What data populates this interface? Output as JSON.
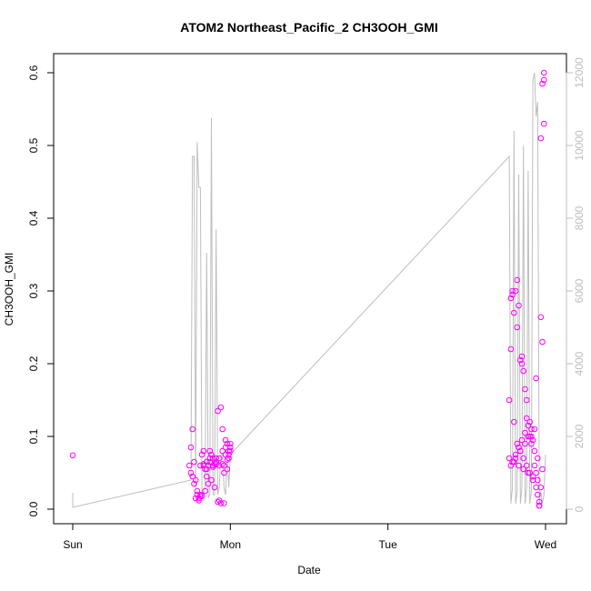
{
  "chart_data": {
    "type": "scatter",
    "title": "ATOM2 Northeast_Pacific_2 CH3OOH_GMI",
    "xlabel": "Date",
    "ylabel": "CH3OOH_GMI",
    "x_unit": "days since Sunday 00:00",
    "xlim": [
      0,
      3
    ],
    "x_ticks": [
      0,
      1,
      2,
      3
    ],
    "x_tick_labels": [
      "Sun",
      "Mon",
      "Tue",
      "Wed"
    ],
    "ylim": [
      0,
      0.6
    ],
    "y_ticks": [
      "0.0",
      "0.1",
      "0.2",
      "0.3",
      "0.4",
      "0.5",
      "0.6"
    ],
    "y2lim": [
      0,
      12000
    ],
    "y2_ticks": [
      "0",
      "2000",
      "4000",
      "6000",
      "8000",
      "10000",
      "12000"
    ],
    "grid": false,
    "legend": "none",
    "colors": {
      "points": "#ff00ff",
      "line": "#bebebe",
      "text": "#000000"
    },
    "series": [
      {
        "kind": "points",
        "axis": "left",
        "x": [
          0.0,
          0.74,
          0.75,
          0.76,
          0.77,
          0.78,
          0.79,
          0.8,
          0.81,
          0.82,
          0.83,
          0.84,
          0.85,
          0.86,
          0.87,
          0.88,
          0.89,
          0.9,
          0.91,
          0.92,
          0.93,
          0.94,
          0.95,
          0.96,
          0.97,
          0.98,
          0.99,
          1.0,
          0.76,
          0.78,
          0.8,
          0.82,
          0.84,
          0.86,
          0.88,
          0.9,
          0.92,
          0.94,
          0.96,
          0.98,
          1.0,
          0.81,
          0.83,
          0.85,
          0.87,
          0.89,
          0.91,
          0.93,
          0.95,
          0.97,
          0.99,
          0.75,
          0.77,
          0.79,
          0.81,
          0.83,
          0.85,
          0.87,
          0.89,
          0.91,
          0.93,
          0.95,
          0.96,
          0.97,
          0.98,
          0.99,
          1.0,
          2.77,
          2.78,
          2.79,
          2.8,
          2.81,
          2.82,
          2.83,
          2.84,
          2.85,
          2.86,
          2.87,
          2.88,
          2.89,
          2.9,
          2.91,
          2.92,
          2.93,
          2.94,
          2.95,
          2.96,
          2.97,
          2.98,
          2.99,
          2.78,
          2.8,
          2.82,
          2.84,
          2.86,
          2.88,
          2.9,
          2.92,
          2.94,
          2.96,
          2.98,
          2.79,
          2.81,
          2.83,
          2.85,
          2.87,
          2.89,
          2.91,
          2.93,
          2.95,
          2.97,
          2.99,
          2.77,
          2.8,
          2.83,
          2.86,
          2.89,
          2.92,
          2.95,
          2.98,
          2.78,
          2.81,
          2.84,
          2.87,
          2.9,
          2.93,
          2.96,
          2.99,
          2.79,
          2.82,
          2.85,
          2.88,
          2.91,
          2.94,
          2.97
        ],
        "y": [
          0.074,
          0.06,
          0.05,
          0.11,
          0.065,
          0.04,
          0.02,
          0.015,
          0.06,
          0.075,
          0.08,
          0.055,
          0.065,
          0.06,
          0.07,
          0.075,
          0.06,
          0.062,
          0.065,
          0.135,
          0.07,
          0.14,
          0.08,
          0.06,
          0.075,
          0.068,
          0.07,
          0.085,
          0.045,
          0.015,
          0.012,
          0.018,
          0.025,
          0.035,
          0.04,
          0.03,
          0.01,
          0.008,
          0.05,
          0.055,
          0.09,
          0.02,
          0.062,
          0.045,
          0.08,
          0.058,
          0.07,
          0.012,
          0.11,
          0.095,
          0.08,
          0.085,
          0.035,
          0.025,
          0.018,
          0.06,
          0.055,
          0.065,
          0.07,
          0.062,
          0.06,
          0.062,
          0.008,
          0.085,
          0.09,
          0.075,
          0.08,
          0.15,
          0.29,
          0.295,
          0.27,
          0.3,
          0.315,
          0.28,
          0.205,
          0.21,
          0.19,
          0.165,
          0.125,
          0.115,
          0.12,
          0.1,
          0.095,
          0.06,
          0.05,
          0.02,
          0.01,
          0.03,
          0.23,
          0.6,
          0.22,
          0.12,
          0.09,
          0.08,
          0.07,
          0.06,
          0.05,
          0.04,
          0.03,
          0.005,
          0.055,
          0.065,
          0.075,
          0.085,
          0.095,
          0.105,
          0.1,
          0.09,
          0.08,
          0.07,
          0.51,
          0.59,
          0.07,
          0.065,
          0.06,
          0.055,
          0.05,
          0.045,
          0.04,
          0.585,
          0.06,
          0.07,
          0.08,
          0.09,
          0.1,
          0.11,
          0.005,
          0.53,
          0.3,
          0.25,
          0.2,
          0.15,
          0.11,
          0.18,
          0.264
        ]
      },
      {
        "kind": "line",
        "axis": "right",
        "x": [
          0.0,
          0.0,
          0.75,
          0.76,
          0.77,
          0.78,
          0.79,
          0.8,
          0.81,
          0.82,
          0.83,
          0.84,
          0.85,
          0.86,
          0.87,
          0.88,
          0.89,
          0.9,
          0.91,
          0.92,
          0.93,
          0.94,
          0.95,
          0.96,
          0.97,
          0.98,
          0.99,
          1.0,
          2.77,
          2.78,
          2.79,
          2.8,
          2.81,
          2.82,
          2.83,
          2.84,
          2.85,
          2.86,
          2.87,
          2.88,
          2.89,
          2.9,
          2.91,
          2.92,
          2.93,
          2.94,
          2.95,
          2.96,
          2.97,
          2.98,
          2.99,
          3.0
        ],
        "y": [
          450,
          50,
          800,
          9700,
          9700,
          600,
          10100,
          8850,
          8850,
          400,
          400,
          600,
          7050,
          300,
          400,
          10750,
          400,
          400,
          7700,
          400,
          600,
          1500,
          1500,
          600,
          400,
          1500,
          600,
          1500,
          9700,
          150,
          600,
          10400,
          150,
          500,
          9200,
          150,
          600,
          10000,
          150,
          600,
          9300,
          150,
          500,
          11800,
          12000,
          10800,
          11200,
          150,
          500,
          150,
          400,
          1500
        ]
      }
    ]
  }
}
